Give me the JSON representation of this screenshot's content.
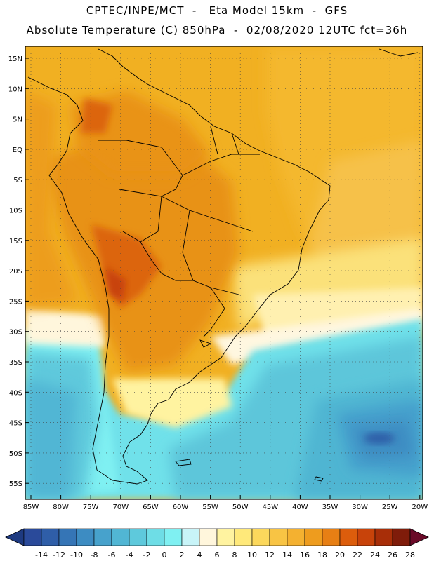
{
  "title_line1": "CPTEC/INPE/MCT  -   Eta Model 15km  -  GFS",
  "title_line2": "Absolute Temperature (C) 850hPa  -  02/08/2020 12UTC fct=36h",
  "lat_labels": [
    "15N",
    "10N",
    "5N",
    "EQ",
    "5S",
    "10S",
    "15S",
    "20S",
    "25S",
    "30S",
    "35S",
    "40S",
    "45S",
    "50S",
    "55S"
  ],
  "lon_labels": [
    "85W",
    "80W",
    "75W",
    "70W",
    "65W",
    "60W",
    "55W",
    "50W",
    "45W",
    "40W",
    "35W",
    "30W",
    "25W",
    "20W"
  ],
  "colorbar": {
    "labels": [
      "-14",
      "-12",
      "-10",
      "-8",
      "-6",
      "-4",
      "-2",
      "0",
      "2",
      "4",
      "6",
      "8",
      "10",
      "12",
      "14",
      "16",
      "18",
      "20",
      "22",
      "24",
      "26",
      "28"
    ],
    "colors": [
      "#2a4a9a",
      "#2f5ea8",
      "#3575b6",
      "#3d8cc2",
      "#47a2cc",
      "#51b6d4",
      "#5ec9dc",
      "#6edde6",
      "#7ff0f2",
      "#c8f4f8",
      "#fff6dc",
      "#fff3a0",
      "#ffe97a",
      "#fcd85c",
      "#f8c444",
      "#f4b130",
      "#ee9c1e",
      "#e77f14",
      "#dc5d0c",
      "#c8430a",
      "#a82e08",
      "#7f1c0a"
    ],
    "low_arrow_color": "#1e3a80",
    "high_arrow_color": "#6a0a28"
  }
}
